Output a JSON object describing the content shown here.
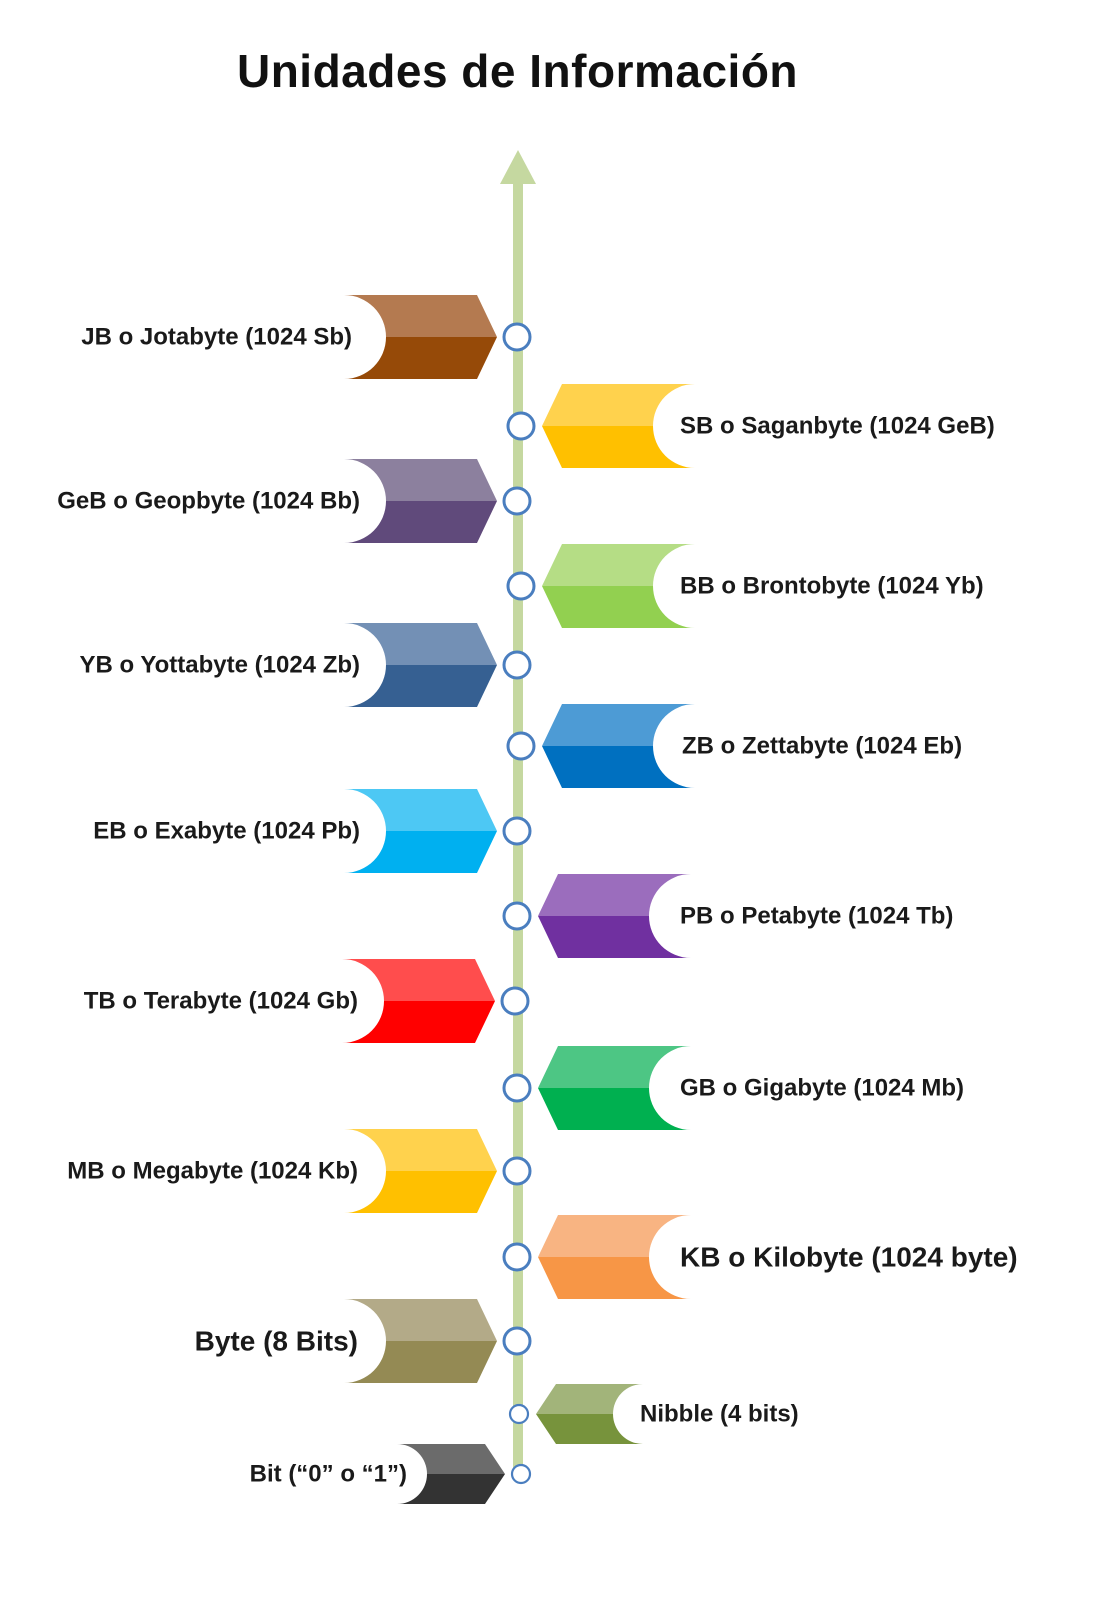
{
  "title": "Unidades de Información",
  "timeline": {
    "line_color": "#c5d8a0",
    "node_stroke": "#4a7ebf",
    "node_fill": "#ffffff"
  },
  "units": [
    {
      "id": "jotabyte",
      "label": "JB o Jotabyte (1024 Sb)",
      "side": "left",
      "top_color": "#b47a50",
      "bottom_color": "#964a08"
    },
    {
      "id": "saganbyte",
      "label": "SB o Saganbyte (1024 GeB)",
      "side": "right",
      "top_color": "#ffd24d",
      "bottom_color": "#ffc000"
    },
    {
      "id": "geopbyte",
      "label": "GeB o Geopbyte (1024 Bb)",
      "side": "left",
      "top_color": "#8c809e",
      "bottom_color": "#604a7b"
    },
    {
      "id": "brontobyte",
      "label": "BB o Brontobyte (1024 Yb)",
      "side": "right",
      "top_color": "#b5dd85",
      "bottom_color": "#92d050"
    },
    {
      "id": "yottabyte",
      "label": "YB o Yottabyte (1024 Zb)",
      "side": "left",
      "top_color": "#7390b5",
      "bottom_color": "#366092"
    },
    {
      "id": "zettabyte",
      "label": "ZB o Zettabyte (1024 Eb)",
      "side": "right",
      "top_color": "#4d9bd5",
      "bottom_color": "#0070c0"
    },
    {
      "id": "exabyte",
      "label": "EB o Exabyte (1024 Pb)",
      "side": "left",
      "top_color": "#4dc8f4",
      "bottom_color": "#00b0f0"
    },
    {
      "id": "petabyte",
      "label": "PB o Petabyte (1024 Tb)",
      "side": "right",
      "top_color": "#9b6dbd",
      "bottom_color": "#7030a0"
    },
    {
      "id": "terabyte",
      "label": "TB o Terabyte (1024 Gb)",
      "side": "left",
      "top_color": "#ff4d4d",
      "bottom_color": "#ff0000"
    },
    {
      "id": "gigabyte",
      "label": "GB o Gigabyte (1024 Mb)",
      "side": "right",
      "top_color": "#4dc684",
      "bottom_color": "#00b050"
    },
    {
      "id": "megabyte",
      "label": "MB o Megabyte (1024 Kb)",
      "side": "left",
      "top_color": "#ffd24d",
      "bottom_color": "#ffc000"
    },
    {
      "id": "kilobyte",
      "label": "KB o Kilobyte (1024 byte)",
      "side": "right",
      "top_color": "#f8b482",
      "bottom_color": "#f79646"
    },
    {
      "id": "byte",
      "label": "Byte (8 Bits)",
      "side": "left",
      "top_color": "#b3aa88",
      "bottom_color": "#948a54"
    },
    {
      "id": "nibble",
      "label": "Nibble (4 bits)",
      "side": "right",
      "top_color": "#a2b47a",
      "bottom_color": "#77933c"
    },
    {
      "id": "bit",
      "label": "Bit (“0” o “1”)",
      "side": "left",
      "top_color": "#6b6b6b",
      "bottom_color": "#333333"
    }
  ]
}
